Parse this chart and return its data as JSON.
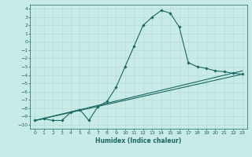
{
  "title": "",
  "xlabel": "Humidex (Indice chaleur)",
  "ylabel": "",
  "bg_color": "#c8ebe8",
  "grid_color": "#b0d8d4",
  "line_color": "#1a6660",
  "xlim": [
    -0.5,
    23.5
  ],
  "ylim": [
    -10.5,
    4.5
  ],
  "xticks": [
    0,
    1,
    2,
    3,
    4,
    5,
    6,
    7,
    8,
    9,
    10,
    11,
    12,
    13,
    14,
    15,
    16,
    17,
    18,
    19,
    20,
    21,
    22,
    23
  ],
  "yticks": [
    4,
    3,
    2,
    1,
    0,
    -1,
    -2,
    -3,
    -4,
    -5,
    -6,
    -7,
    -8,
    -9,
    -10
  ],
  "line1_x": [
    0,
    1,
    2,
    3,
    4,
    5,
    6,
    7,
    8,
    9,
    10,
    11,
    12,
    13,
    14,
    15,
    16,
    17,
    18,
    19,
    20,
    21,
    22,
    23
  ],
  "line1_y": [
    -9.5,
    -9.3,
    -9.5,
    -9.5,
    -8.5,
    -8.2,
    -9.5,
    -7.8,
    -7.2,
    -5.5,
    -3.0,
    -0.5,
    2.0,
    3.0,
    3.8,
    3.5,
    1.8,
    -2.5,
    -3.0,
    -3.2,
    -3.5,
    -3.6,
    -3.8,
    -3.9
  ],
  "line2_x": [
    0,
    23
  ],
  "line2_y": [
    -9.5,
    -3.5
  ],
  "line3_x": [
    0,
    23
  ],
  "line3_y": [
    -9.5,
    -3.9
  ],
  "marker_style": "D",
  "markersize": 1.8,
  "linewidth": 0.8,
  "tick_fontsize": 4.5,
  "xlabel_fontsize": 5.5
}
